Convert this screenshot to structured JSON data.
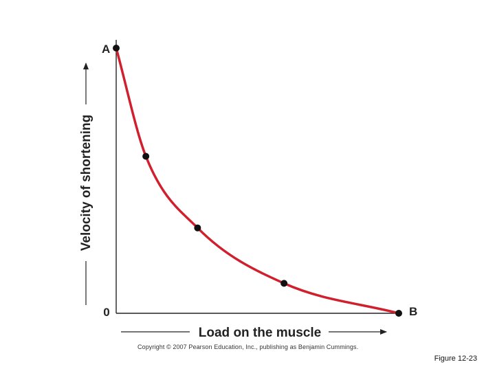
{
  "chart_data": {
    "type": "line",
    "title": "",
    "xlabel": "Load on the muscle",
    "ylabel": "Velocity of shortening",
    "origin_label": "0",
    "xlim": [
      0,
      100
    ],
    "ylim": [
      0,
      100
    ],
    "series": [
      {
        "color": "#d0202e",
        "x": [
          0,
          10.5,
          28.8,
          59.4,
          100
        ],
        "y": [
          100,
          59.2,
          32.2,
          11.3,
          0
        ],
        "point_labels": [
          "A",
          "",
          "",
          "",
          "B"
        ]
      }
    ],
    "grid": false,
    "legend": "none"
  },
  "footer": {
    "copyright": "Copyright © 2007 Pearson Education, Inc., publishing as Benjamin Cummings.",
    "figure_label": "Figure 12-23"
  },
  "colors": {
    "curve": "#d0202e",
    "points": "#111111",
    "axes": "#222222"
  }
}
